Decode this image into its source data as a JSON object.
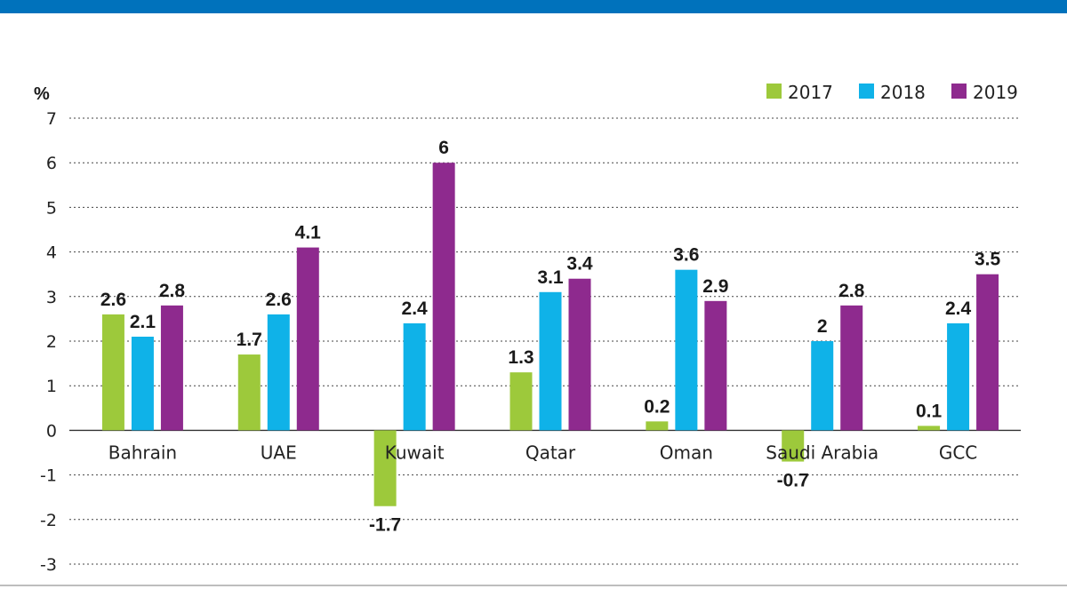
{
  "chart_data": {
    "type": "bar",
    "ylabel": "%",
    "ylim": [
      -3,
      7
    ],
    "yticks": [
      -3,
      -2,
      -1,
      0,
      1,
      2,
      3,
      4,
      5,
      6,
      7
    ],
    "grid": true,
    "legend_position": "top-right",
    "categories": [
      "Bahrain",
      "UAE",
      "Kuwait",
      "Qatar",
      "Oman",
      "Saudi Arabia",
      "GCC"
    ],
    "series": [
      {
        "name": "2017",
        "color": "#9DC93B",
        "values": [
          2.6,
          1.7,
          -1.7,
          1.3,
          0.2,
          -0.7,
          0.1
        ]
      },
      {
        "name": "2018",
        "color": "#0FB2E8",
        "values": [
          2.1,
          2.6,
          2.4,
          3.1,
          3.6,
          2,
          2.4
        ]
      },
      {
        "name": "2019",
        "color": "#8E2A8E",
        "values": [
          2.8,
          4.1,
          6,
          3.4,
          2.9,
          2.8,
          3.5
        ]
      }
    ],
    "header_bar_color": "#0072BC"
  }
}
